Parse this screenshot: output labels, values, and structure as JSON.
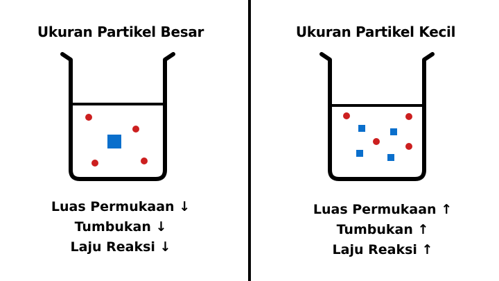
{
  "colors": {
    "particle_red": "#cc1f1f",
    "particle_blue": "#0a6fcc",
    "stroke": "#000000"
  },
  "left_panel": {
    "title": "Ukuran Partikel Besar",
    "stats": [
      {
        "label": "Luas Permukaan",
        "arrow": "↓"
      },
      {
        "label": "Tumbukan",
        "arrow": "↓"
      },
      {
        "label": "Laju Reaksi",
        "arrow": "↓"
      }
    ]
  },
  "right_panel": {
    "title": "Ukuran Partikel Kecil",
    "stats": [
      {
        "label": "Luas Permukaan",
        "arrow": "↑"
      },
      {
        "label": "Tumbukan",
        "arrow": "↑"
      },
      {
        "label": "Laju Reaksi",
        "arrow": "↑"
      }
    ]
  }
}
